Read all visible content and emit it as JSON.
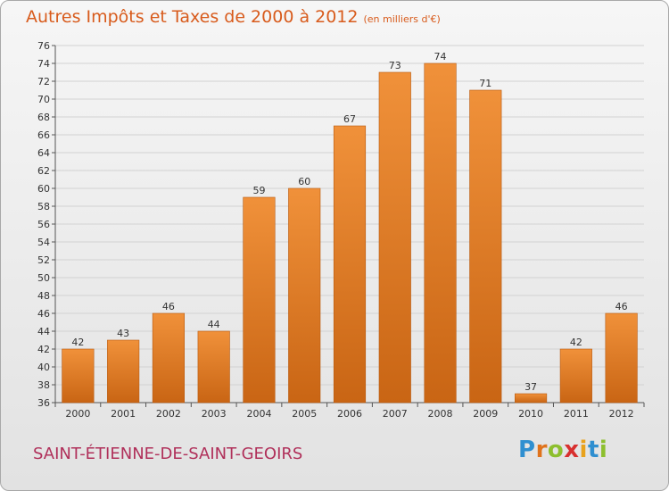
{
  "header": {
    "title": "Autres Impôts et Taxes de 2000 à 2012",
    "unit": "(en milliers d'€)"
  },
  "footer": {
    "commune": "SAINT-ÉTIENNE-DE-SAINT-GEOIRS",
    "logo_letters": [
      "P",
      "r",
      "o",
      "x",
      "i",
      "t",
      "i"
    ],
    "logo_colors": [
      "#2f8fd0",
      "#e0731c",
      "#8dbf2e",
      "#d8302f",
      "#e8a21c",
      "#2f8fd0",
      "#8dbf2e"
    ]
  },
  "chart_data": {
    "type": "bar",
    "categories": [
      "2000",
      "2001",
      "2002",
      "2003",
      "2004",
      "2005",
      "2006",
      "2007",
      "2008",
      "2009",
      "2010",
      "2011",
      "2012"
    ],
    "values": [
      42,
      43,
      46,
      44,
      59,
      60,
      67,
      73,
      74,
      71,
      37,
      42,
      46
    ],
    "ylim": [
      36,
      76
    ],
    "ytick_step": 2,
    "grid": true,
    "bar_color": "#f0913a",
    "bar_color_dark": "#c96514",
    "show_value_labels": true
  }
}
